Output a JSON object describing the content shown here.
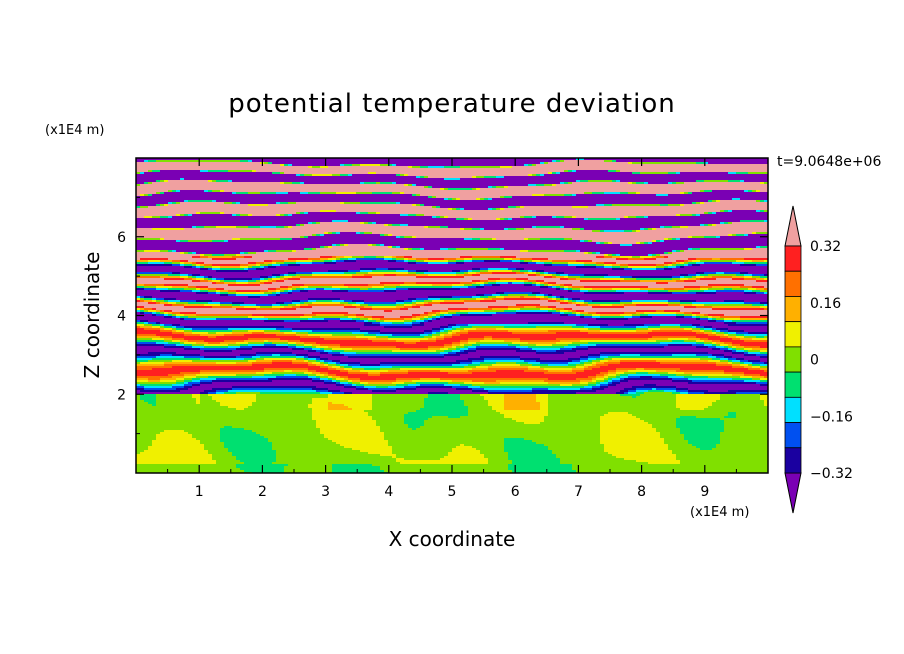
{
  "chart_data": {
    "type": "heatmap",
    "title": "potential temperature deviation",
    "xlabel": "X coordinate",
    "ylabel": "Z coordinate",
    "x_unit": "(x1E4 m)",
    "y_unit": "(x1E4 m)",
    "time_label": "t=9.0648e+06",
    "xlim": [
      0,
      10
    ],
    "ylim": [
      0,
      8
    ],
    "x_ticks": [
      "1",
      "2",
      "3",
      "4",
      "5",
      "6",
      "7",
      "8",
      "9"
    ],
    "y_ticks": [
      "2",
      "4",
      "6"
    ],
    "colorbar": {
      "levels": [
        -0.4,
        -0.32,
        -0.24,
        -0.16,
        -0.08,
        0,
        0.08,
        0.16,
        0.24,
        0.32,
        0.4
      ],
      "labels": [
        "0.32",
        "0.16",
        "0",
        "−0.16",
        "−0.32"
      ],
      "label_values": [
        0.32,
        0.16,
        0,
        -0.16,
        -0.32
      ],
      "colors": [
        "#7a00b4",
        "#1a00a0",
        "#0050f0",
        "#00e0ff",
        "#00e070",
        "#80e000",
        "#f0f000",
        "#ffb000",
        "#ff7000",
        "#ff2020",
        "#f0a0a0"
      ]
    },
    "layer_boundary_z": 2.0,
    "grid": false
  }
}
